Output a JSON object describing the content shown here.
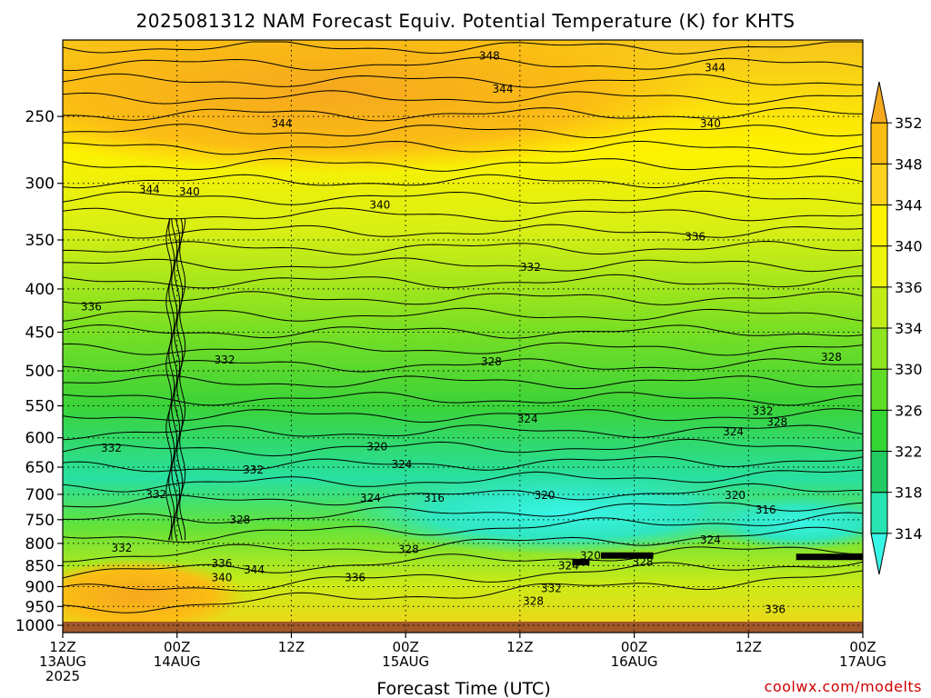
{
  "chart_data": {
    "type": "heatmap",
    "title": "2025081312 NAM Forecast Equiv. Potential Temperature (K) for KHTS",
    "xlabel": "Forecast Time (UTC)",
    "ylabel": "",
    "x_ticks": [
      {
        "hours": 0,
        "lines": [
          "12Z",
          "13AUG",
          "2025"
        ]
      },
      {
        "hours": 12,
        "lines": [
          "00Z",
          "14AUG"
        ]
      },
      {
        "hours": 24,
        "lines": [
          "12Z"
        ]
      },
      {
        "hours": 36,
        "lines": [
          "00Z",
          "15AUG"
        ]
      },
      {
        "hours": 48,
        "lines": [
          "12Z"
        ]
      },
      {
        "hours": 60,
        "lines": [
          "00Z",
          "16AUG"
        ]
      },
      {
        "hours": 72,
        "lines": [
          "12Z"
        ]
      },
      {
        "hours": 84,
        "lines": [
          "00Z",
          "17AUG"
        ]
      }
    ],
    "xlim_hours": [
      0,
      84
    ],
    "y_ticks_hPa": [
      250,
      300,
      350,
      400,
      450,
      500,
      550,
      600,
      650,
      700,
      750,
      800,
      850,
      900,
      950,
      1000
    ],
    "y_scale": "log",
    "ylim_hPa": [
      1020,
      203
    ],
    "grid": true,
    "colorbar": {
      "levels": [
        314,
        318,
        322,
        326,
        330,
        334,
        336,
        340,
        344,
        348,
        352
      ],
      "labels": [
        "314",
        "318",
        "322",
        "326",
        "330",
        "334",
        "336",
        "340",
        "344",
        "348",
        "352"
      ],
      "colors": [
        "#38f6e6",
        "#28e4b0",
        "#22cc62",
        "#34d432",
        "#5edc26",
        "#8ee41e",
        "#c2ec18",
        "#eef40c",
        "#fff200",
        "#ffd21e",
        "#fbbd14",
        "#f6a81e"
      ],
      "extend": "both"
    },
    "ground_color": "#a0582a",
    "ground_top_hPa": 990,
    "contour_labels": [
      {
        "text": "348",
        "t": 44.8,
        "p": 212
      },
      {
        "text": "344",
        "t": 68.5,
        "p": 219
      },
      {
        "text": "344",
        "t": 46.2,
        "p": 232
      },
      {
        "text": "344",
        "t": 23.0,
        "p": 255
      },
      {
        "text": "340",
        "t": 68.0,
        "p": 255
      },
      {
        "text": "344",
        "t": 9.1,
        "p": 305
      },
      {
        "text": "340",
        "t": 13.3,
        "p": 307
      },
      {
        "text": "340",
        "t": 33.3,
        "p": 318
      },
      {
        "text": "336",
        "t": 66.4,
        "p": 347
      },
      {
        "text": "332",
        "t": 49.1,
        "p": 377
      },
      {
        "text": "336",
        "t": 3.0,
        "p": 420
      },
      {
        "text": "332",
        "t": 17.0,
        "p": 485
      },
      {
        "text": "328",
        "t": 80.7,
        "p": 482
      },
      {
        "text": "328",
        "t": 45.0,
        "p": 488
      },
      {
        "text": "332",
        "t": 73.5,
        "p": 558
      },
      {
        "text": "328",
        "t": 75.0,
        "p": 575
      },
      {
        "text": "324",
        "t": 48.8,
        "p": 570
      },
      {
        "text": "324",
        "t": 70.4,
        "p": 590
      },
      {
        "text": "332",
        "t": 5.1,
        "p": 617
      },
      {
        "text": "320",
        "t": 33.0,
        "p": 615
      },
      {
        "text": "324",
        "t": 35.6,
        "p": 645
      },
      {
        "text": "332",
        "t": 20.0,
        "p": 655
      },
      {
        "text": "332",
        "t": 9.8,
        "p": 700
      },
      {
        "text": "320",
        "t": 50.6,
        "p": 702
      },
      {
        "text": "320",
        "t": 70.6,
        "p": 702
      },
      {
        "text": "324",
        "t": 32.3,
        "p": 707
      },
      {
        "text": "316",
        "t": 39.0,
        "p": 707
      },
      {
        "text": "316",
        "t": 73.8,
        "p": 730
      },
      {
        "text": "328",
        "t": 18.6,
        "p": 750
      },
      {
        "text": "324",
        "t": 68.0,
        "p": 792
      },
      {
        "text": "332",
        "t": 6.2,
        "p": 810
      },
      {
        "text": "328",
        "t": 36.3,
        "p": 813
      },
      {
        "text": "320",
        "t": 55.4,
        "p": 827
      },
      {
        "text": "328",
        "t": 60.9,
        "p": 842
      },
      {
        "text": "324",
        "t": 53.1,
        "p": 850
      },
      {
        "text": "336",
        "t": 16.7,
        "p": 845
      },
      {
        "text": "344",
        "t": 20.1,
        "p": 860
      },
      {
        "text": "340",
        "t": 16.7,
        "p": 878
      },
      {
        "text": "336",
        "t": 30.7,
        "p": 878
      },
      {
        "text": "332",
        "t": 51.3,
        "p": 905
      },
      {
        "text": "328",
        "t": 49.4,
        "p": 937
      },
      {
        "text": "336",
        "t": 74.8,
        "p": 957
      }
    ],
    "bold_segments": [
      {
        "from": {
          "t": 53.5,
          "p": 842
        },
        "to": {
          "t": 55.3,
          "p": 842
        }
      },
      {
        "from": {
          "t": 56.5,
          "p": 827
        },
        "to": {
          "t": 62.0,
          "p": 827
        }
      },
      {
        "from": {
          "t": 77.0,
          "p": 830
        },
        "to": {
          "t": 84.0,
          "p": 830
        }
      }
    ]
  },
  "credit": "coolwx.com/modelts"
}
